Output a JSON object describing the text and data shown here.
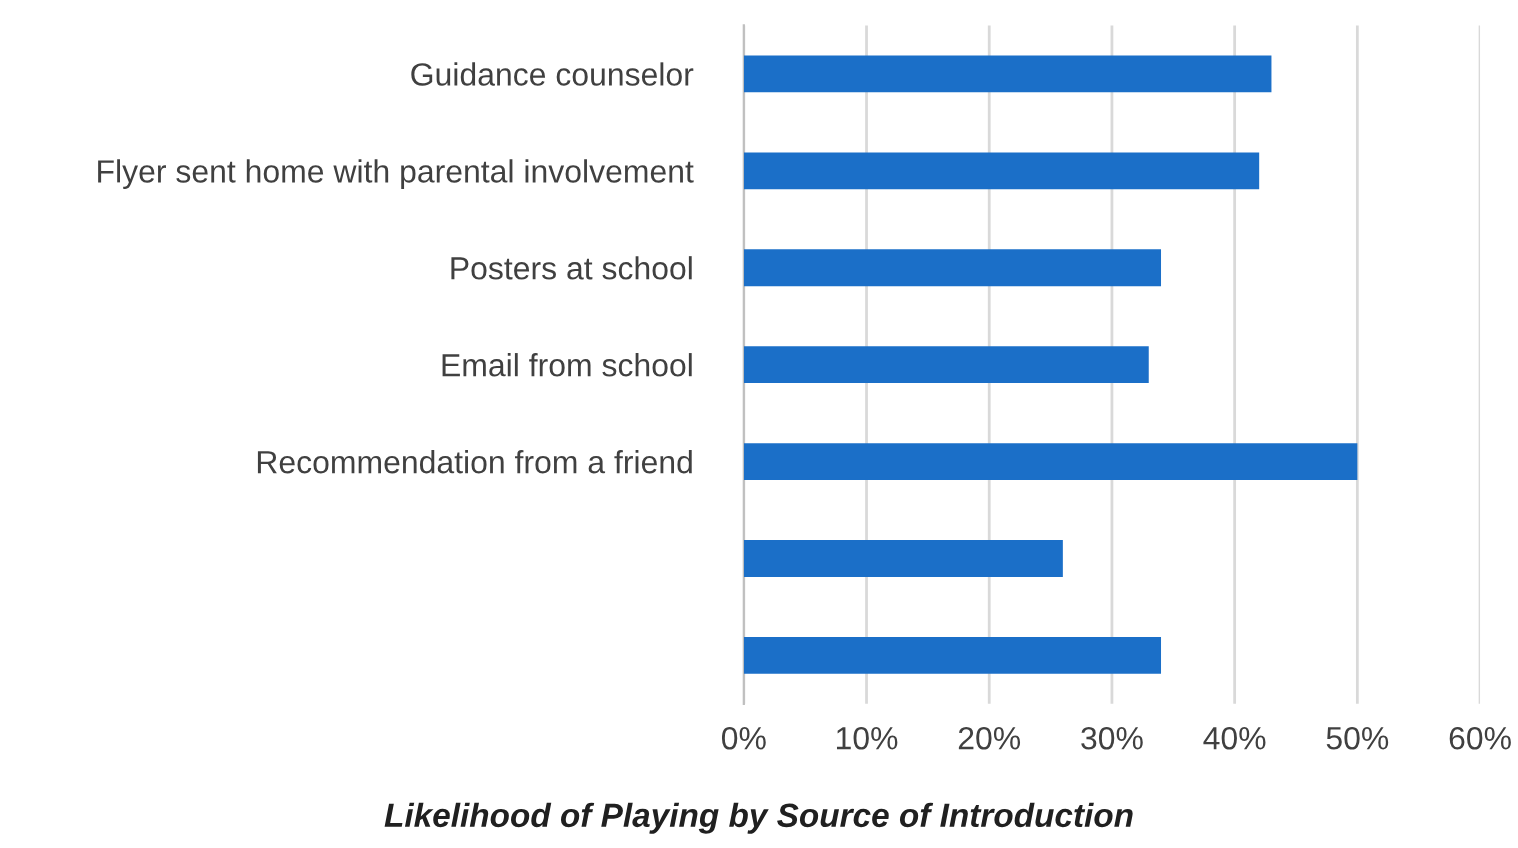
{
  "chart_data": {
    "type": "bar",
    "orientation": "horizontal",
    "title": "Likelihood of Playing by Source of Introduction",
    "categories": [
      "Guidance counselor",
      "Flyer sent home with parental involvement",
      "Posters at school",
      "Email from school",
      "Recommendation from a friend",
      null,
      null
    ],
    "values": [
      43,
      42,
      34,
      33,
      50,
      26,
      34
    ],
    "color": "#1b6fc8",
    "xlim": [
      0,
      60
    ],
    "xticks": [
      {
        "value": 0,
        "label": "0%"
      },
      {
        "value": 10,
        "label": "10%"
      },
      {
        "value": 20,
        "label": "20%"
      },
      {
        "value": 30,
        "label": "30%"
      },
      {
        "value": 40,
        "label": "40%"
      },
      {
        "value": 50,
        "label": "50%"
      },
      {
        "value": 60,
        "label": "60%"
      }
    ],
    "grid": "x"
  }
}
